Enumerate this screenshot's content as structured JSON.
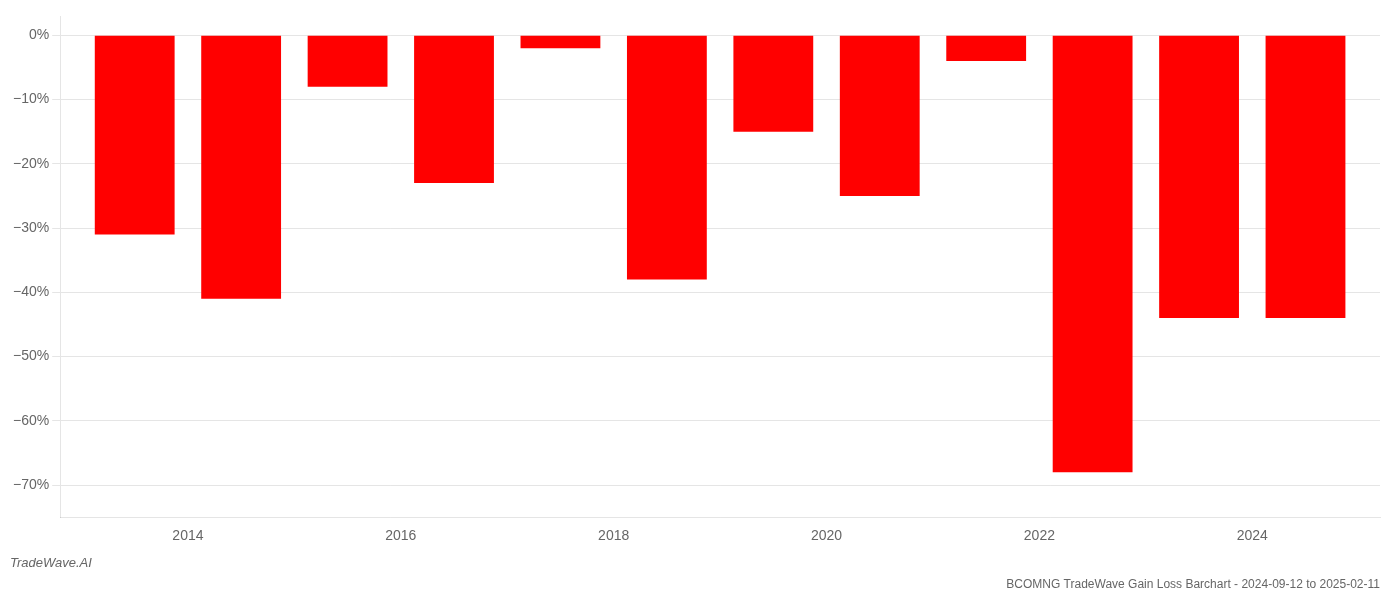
{
  "chart_data": {
    "type": "bar",
    "title": "BCOMNG TradeWave Gain Loss Barchart - 2024-09-12 to 2025-02-11",
    "annotations": [
      "TradeWave.AI"
    ],
    "x": [
      2013,
      2014,
      2015,
      2016,
      2017,
      2018,
      2019,
      2020,
      2021,
      2022,
      2023,
      2024
    ],
    "values": [
      -31.0,
      -41.0,
      -8.0,
      -23.0,
      -2.0,
      -38.0,
      -15.0,
      -25.0,
      -4.0,
      -68.0,
      -44.0,
      -44.0
    ],
    "color": "#ff0000",
    "xlim": [
      2012.3,
      2024.7
    ],
    "xticks": [
      {
        "value": 2013.5,
        "label": "2014"
      },
      {
        "value": 2015.5,
        "label": "2016"
      },
      {
        "value": 2017.5,
        "label": "2018"
      },
      {
        "value": 2019.5,
        "label": "2020"
      },
      {
        "value": 2021.5,
        "label": "2022"
      },
      {
        "value": 2023.5,
        "label": "2024"
      }
    ],
    "ylim": [
      -75,
      3
    ],
    "yticks": [
      {
        "value": 0,
        "label": "0%"
      },
      {
        "value": -10,
        "label": "−10%"
      },
      {
        "value": -20,
        "label": "−20%"
      },
      {
        "value": -30,
        "label": "−30%"
      },
      {
        "value": -40,
        "label": "−40%"
      },
      {
        "value": -50,
        "label": "−50%"
      },
      {
        "value": -60,
        "label": "−60%"
      },
      {
        "value": -70,
        "label": "−70%"
      }
    ],
    "grid": true
  }
}
